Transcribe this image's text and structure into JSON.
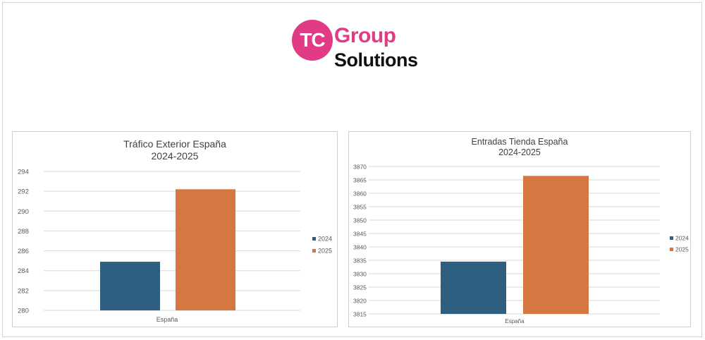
{
  "logo": {
    "mark": "TC",
    "line1": "Group",
    "line2": "Solutions",
    "colors": {
      "accent": "#e23b86",
      "text": "#111111"
    }
  },
  "chart_data": [
    {
      "type": "bar",
      "title": "Tráfico Exterior España",
      "subtitle": "2024-2025",
      "categories": [
        "España"
      ],
      "series": [
        {
          "name": "2024",
          "values": [
            284.9
          ],
          "color": "#2e5e80"
        },
        {
          "name": "2025",
          "values": [
            292.2
          ],
          "color": "#d67641"
        }
      ],
      "ylim": [
        280,
        294
      ],
      "yticks": [
        280,
        282,
        284,
        286,
        288,
        290,
        292,
        294
      ],
      "grid": true,
      "legend": "right"
    },
    {
      "type": "bar",
      "title": "Entradas Tienda España",
      "subtitle": "2024-2025",
      "categories": [
        "España"
      ],
      "series": [
        {
          "name": "2024",
          "values": [
            3834.5
          ],
          "color": "#2e5e80"
        },
        {
          "name": "2025",
          "values": [
            3866.5
          ],
          "color": "#d67641"
        }
      ],
      "ylim": [
        3815,
        3870
      ],
      "yticks": [
        3815,
        3820,
        3825,
        3830,
        3835,
        3840,
        3845,
        3850,
        3855,
        3860,
        3865,
        3870
      ],
      "grid": true,
      "legend": "right"
    }
  ]
}
